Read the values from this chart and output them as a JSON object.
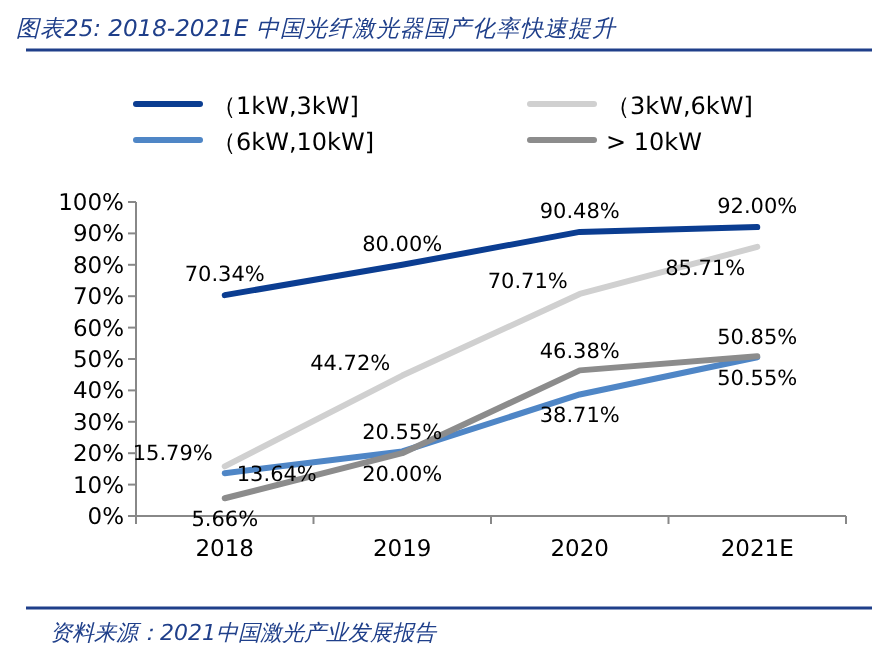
{
  "chart_data": {
    "type": "line",
    "title": "图表25:  2018-2021E 中国光纤激光器国产化率快速提升",
    "categories": [
      "2018",
      "2019",
      "2020",
      "2021E"
    ],
    "series": [
      {
        "name": "（1kW,3kW]",
        "color": "#0b3d91",
        "values": [
          70.34,
          80.0,
          90.48,
          92.0
        ],
        "value_labels": [
          "70.34%",
          "80.00%",
          "90.48%",
          "92.00%"
        ]
      },
      {
        "name": "（3kW,6kW]",
        "color": "#d0d0d0",
        "values": [
          15.79,
          44.72,
          70.71,
          85.71
        ],
        "value_labels": [
          "15.79%",
          "44.72%",
          "70.71%",
          "85.71%"
        ]
      },
      {
        "name": "（6kW,10kW]",
        "color": "#4f86c6",
        "values": [
          13.64,
          20.55,
          38.71,
          50.55
        ],
        "value_labels": [
          "13.64%",
          "20.55%",
          "38.71%",
          "50.55%"
        ]
      },
      {
        "name": "> 10kW",
        "color": "#8c8c8c",
        "values": [
          5.66,
          20.0,
          46.38,
          50.85
        ],
        "value_labels": [
          "5.66%",
          "20.00%",
          "46.38%",
          "50.85%"
        ]
      }
    ],
    "ylim": [
      0,
      100
    ],
    "yticks": [
      {
        "value": 0,
        "label": "0%"
      },
      {
        "value": 10,
        "label": "10%"
      },
      {
        "value": 20,
        "label": "20%"
      },
      {
        "value": 30,
        "label": "30%"
      },
      {
        "value": 40,
        "label": "40%"
      },
      {
        "value": 50,
        "label": "50%"
      },
      {
        "value": 60,
        "label": "60%"
      },
      {
        "value": 70,
        "label": "70%"
      },
      {
        "value": 80,
        "label": "80%"
      },
      {
        "value": 90,
        "label": "90%"
      },
      {
        "value": 100,
        "label": "100%"
      }
    ],
    "legend": "top",
    "grid": false,
    "annotations": [
      "资料来源：2021中国激光产业发展报告"
    ]
  }
}
